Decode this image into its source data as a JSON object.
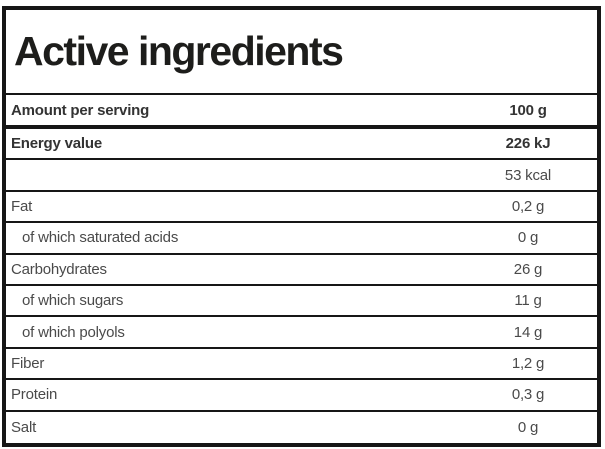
{
  "table": {
    "title": "Active ingredients",
    "rows": [
      {
        "label": "Amount per serving",
        "value": "100 g",
        "bold": true,
        "indent": false,
        "thick_divider": true
      },
      {
        "label": "Energy value",
        "value": "226 kJ",
        "bold": true,
        "indent": false,
        "thick_divider": false
      },
      {
        "label": "",
        "value": "53 kcal",
        "bold": false,
        "indent": false,
        "thick_divider": false
      },
      {
        "label": "Fat",
        "value": "0,2 g",
        "bold": false,
        "indent": false,
        "thick_divider": false
      },
      {
        "label": "of which saturated acids",
        "value": "0 g",
        "bold": false,
        "indent": true,
        "thick_divider": false
      },
      {
        "label": "Carbohydrates",
        "value": "26 g",
        "bold": false,
        "indent": false,
        "thick_divider": false
      },
      {
        "label": "of which sugars",
        "value": "11 g",
        "bold": false,
        "indent": true,
        "thick_divider": false
      },
      {
        "label": "of which polyols",
        "value": "14 g",
        "bold": false,
        "indent": true,
        "thick_divider": false
      },
      {
        "label": "Fiber",
        "value": "1,2 g",
        "bold": false,
        "indent": false,
        "thick_divider": false
      },
      {
        "label": "Protein",
        "value": "0,3 g",
        "bold": false,
        "indent": false,
        "thick_divider": false
      },
      {
        "label": "Salt",
        "value": "0 g",
        "bold": false,
        "indent": false,
        "thick_divider": false
      }
    ]
  },
  "colors": {
    "border": "#161616",
    "title_text": "#1d1d1b",
    "bold_text": "#333333",
    "text": "#4a4a4a",
    "background": "#ffffff"
  }
}
